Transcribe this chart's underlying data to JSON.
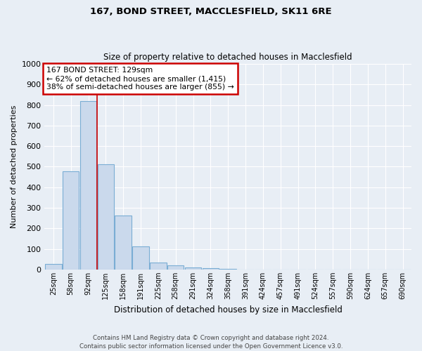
{
  "title1": "167, BOND STREET, MACCLESFIELD, SK11 6RE",
  "title2": "Size of property relative to detached houses in Macclesfield",
  "xlabel": "Distribution of detached houses by size in Macclesfield",
  "ylabel": "Number of detached properties",
  "footer1": "Contains HM Land Registry data © Crown copyright and database right 2024.",
  "footer2": "Contains public sector information licensed under the Open Government Licence v3.0.",
  "bar_categories": [
    "25sqm",
    "58sqm",
    "92sqm",
    "125sqm",
    "158sqm",
    "191sqm",
    "225sqm",
    "258sqm",
    "291sqm",
    "324sqm",
    "358sqm",
    "391sqm",
    "424sqm",
    "457sqm",
    "491sqm",
    "524sqm",
    "557sqm",
    "590sqm",
    "624sqm",
    "657sqm",
    "690sqm"
  ],
  "bar_values": [
    28,
    478,
    820,
    512,
    262,
    112,
    35,
    20,
    10,
    5,
    2,
    0,
    0,
    0,
    0,
    0,
    0,
    0,
    0,
    0,
    0
  ],
  "bar_color": "#cad9ec",
  "bar_edge_color": "#7aadd4",
  "ylim": [
    0,
    1000
  ],
  "yticks": [
    0,
    100,
    200,
    300,
    400,
    500,
    600,
    700,
    800,
    900,
    1000
  ],
  "vline_x": 2.5,
  "annotation_title": "167 BOND STREET: 129sqm",
  "annotation_line1": "← 62% of detached houses are smaller (1,415)",
  "annotation_line2": "38% of semi-detached houses are larger (855) →",
  "annotation_box_color": "#ffffff",
  "annotation_box_edge": "#cc0000",
  "vline_color": "#cc0000",
  "background_color": "#e8eef5",
  "grid_color": "#ffffff",
  "axis_bg_color": "#e8eef5"
}
